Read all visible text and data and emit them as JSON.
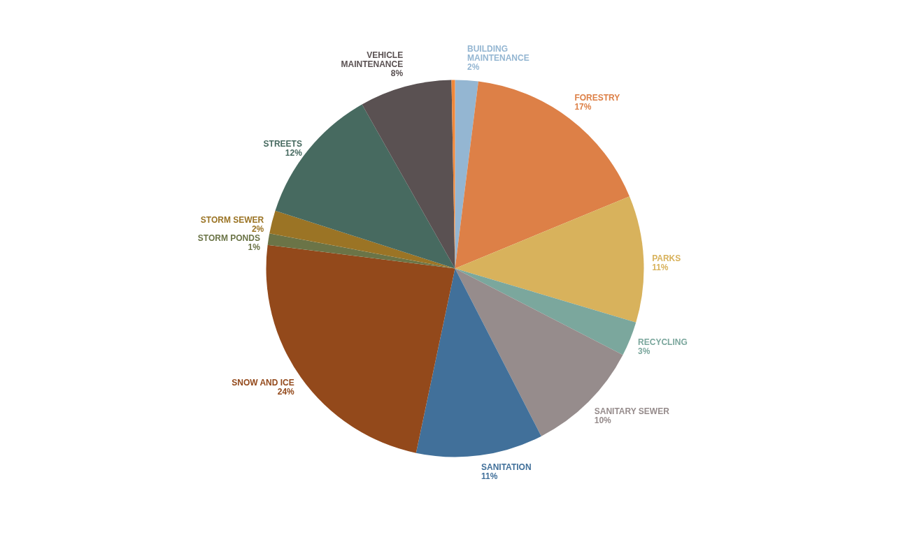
{
  "chart_data": {
    "type": "pie",
    "categories": [
      "BUILDING MAINTENANCE",
      "FORESTRY",
      "PARKS",
      "RECYCLING",
      "SANITARY SEWER",
      "SANITATION",
      "SNOW AND ICE",
      "STORM PONDS",
      "STORM SEWER",
      "STREETS",
      "VEHICLE MAINTENANCE",
      null
    ],
    "values": [
      2,
      17,
      11,
      3,
      10,
      11,
      24,
      1,
      2,
      12,
      8,
      0.3
    ],
    "value_labels": [
      "2%",
      "17%",
      "11%",
      "3%",
      "10%",
      "11%",
      "24%",
      "1%",
      "2%",
      "12%",
      "8%",
      null
    ],
    "colors": [
      "#94b6d2",
      "#dd8047",
      "#d8b25c",
      "#7ba79d",
      "#968c8c",
      "#41709a",
      "#93491b",
      "#6b7447",
      "#9b7425",
      "#476a60",
      "#5a5152",
      "#f0883a"
    ],
    "legend": false
  }
}
